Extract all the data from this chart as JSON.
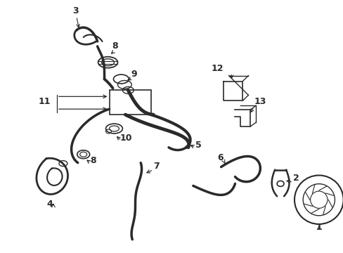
{
  "background_color": "#ffffff",
  "line_color": "#2a2a2a",
  "figsize": [
    4.89,
    3.6
  ],
  "dpi": 100,
  "components": {
    "label_fontsize": 9,
    "label_fontweight": "bold"
  }
}
